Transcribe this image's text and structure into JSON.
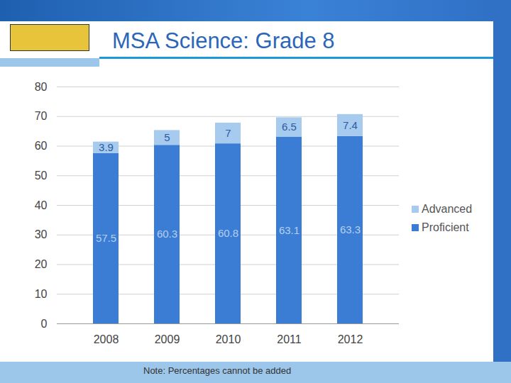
{
  "chart_data": {
    "type": "bar",
    "title": "MSA Science: Grade 8",
    "caption": "Note: Percentages cannot be added",
    "categories": [
      "2008",
      "2009",
      "2010",
      "2011",
      "2012"
    ],
    "series": [
      {
        "name": "Proficient",
        "color": "#3b7dd4",
        "values": [
          57.5,
          60.3,
          60.8,
          63.1,
          63.3
        ]
      },
      {
        "name": "Advanced",
        "color": "#a6cbef",
        "values": [
          3.9,
          5,
          7,
          6.5,
          7.4
        ]
      }
    ],
    "stacked": true,
    "data_labels": true,
    "ylim": [
      0,
      80
    ],
    "yticks": [
      0,
      10,
      20,
      30,
      40,
      50,
      60,
      70,
      80
    ],
    "grid": true,
    "legend": "right"
  }
}
